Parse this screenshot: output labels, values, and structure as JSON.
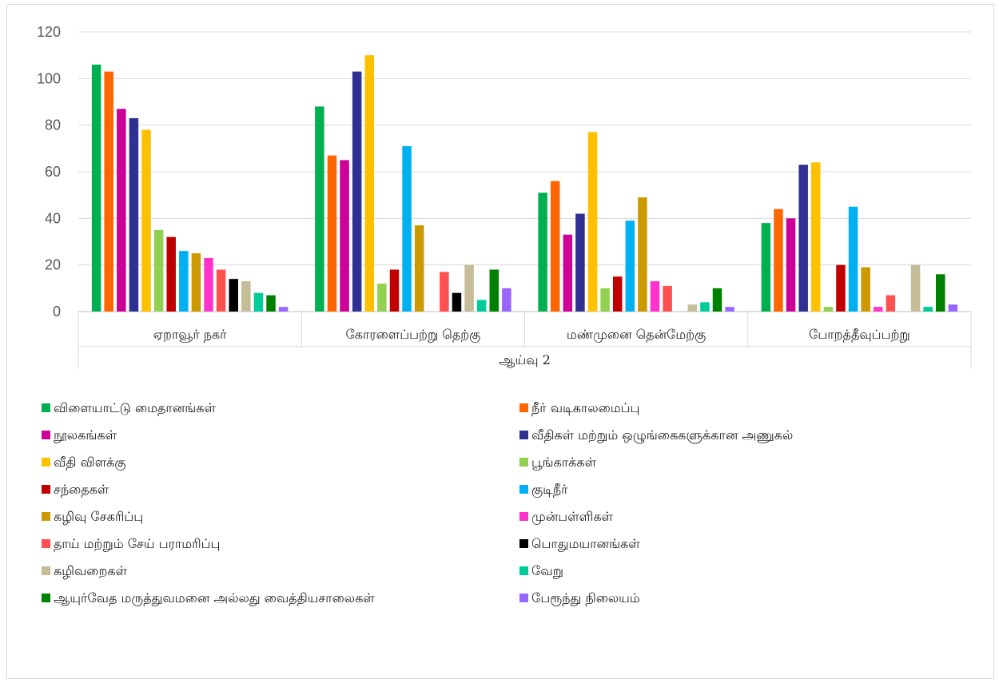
{
  "chart_data": {
    "type": "bar",
    "title": "",
    "xlabel": "ஆய்வு 2",
    "ylabel": "",
    "ylim": [
      0,
      120
    ],
    "yticks": [
      0,
      20,
      40,
      60,
      80,
      100,
      120
    ],
    "grid": true,
    "legend_position": "bottom",
    "categories": [
      "ஏறாவூர் நகர்",
      "கோரளைப்பற்று தெற்கு",
      "மண்முனை தென்மேற்கு",
      "போறத்தீவுப்பற்று"
    ],
    "series": [
      {
        "name": "விளையாட்டு மைதானங்கள்",
        "color": "#00b050",
        "values": [
          106,
          88,
          51,
          38
        ]
      },
      {
        "name": "நீர் வடிகாலமைப்பு",
        "color": "#ff6600",
        "values": [
          103,
          67,
          56,
          44
        ]
      },
      {
        "name": "நூலகங்கள்",
        "color": "#cc0099",
        "values": [
          87,
          65,
          33,
          40
        ]
      },
      {
        "name": "வீதிகள் மற்றும் ஒழுங்கைகளுக்கான அணுகல்",
        "color": "#2e3192",
        "values": [
          83,
          103,
          42,
          63
        ]
      },
      {
        "name": "வீதி விளக்கு",
        "color": "#ffc000",
        "values": [
          78,
          110,
          77,
          64
        ]
      },
      {
        "name": "பூங்காக்கள்",
        "color": "#92d050",
        "values": [
          35,
          12,
          10,
          2
        ]
      },
      {
        "name": "சந்தைகள்",
        "color": "#c00000",
        "values": [
          32,
          18,
          15,
          20
        ]
      },
      {
        "name": "குடிநீர்",
        "color": "#00b0f0",
        "values": [
          26,
          71,
          39,
          45
        ]
      },
      {
        "name": "கழிவு சேகரிப்பு",
        "color": "#cc9900",
        "values": [
          25,
          37,
          49,
          19
        ]
      },
      {
        "name": "முன்பள்ளிகள்",
        "color": "#ff33cc",
        "values": [
          23,
          0,
          13,
          2
        ]
      },
      {
        "name": "தாய் மற்றும் சேய் பராமரிப்பு",
        "color": "#ff5050",
        "values": [
          18,
          17,
          11,
          7
        ]
      },
      {
        "name": "பொதுமயானங்கள்",
        "color": "#000000",
        "values": [
          14,
          8,
          0,
          0
        ]
      },
      {
        "name": "கழிவறைகள்",
        "color": "#c4bd97",
        "values": [
          13,
          20,
          3,
          20
        ]
      },
      {
        "name": "வேறு",
        "color": "#00cc99",
        "values": [
          8,
          5,
          4,
          2
        ]
      },
      {
        "name": "ஆயுர்வேத மருத்துவமனை அல்லது வைத்தியசாலைகள்",
        "color": "#008000",
        "values": [
          7,
          18,
          10,
          16
        ]
      },
      {
        "name": "பேரூந்து நிலையம்",
        "color": "#9966ff",
        "values": [
          2,
          10,
          2,
          3
        ]
      }
    ]
  }
}
